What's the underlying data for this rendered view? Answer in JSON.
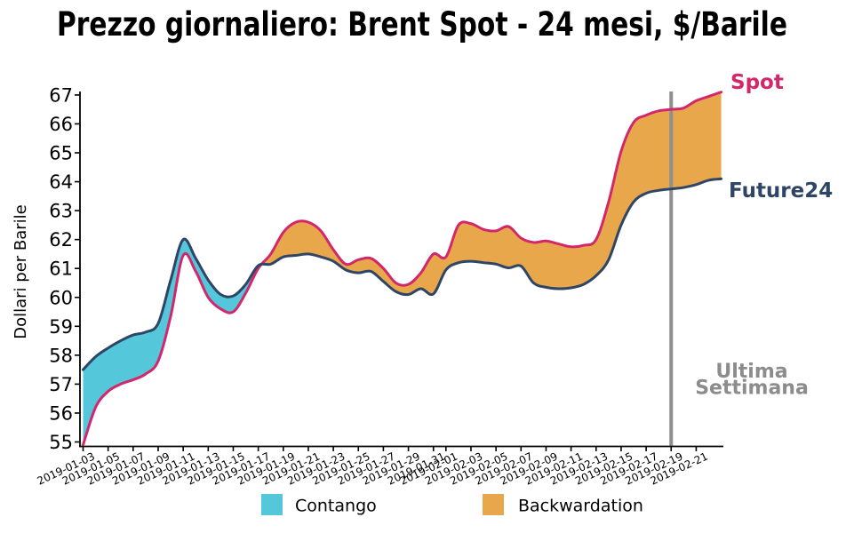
{
  "title": "Prezzo giornaliero: Brent Spot - 24 mesi, $/Barile",
  "ylabel": "Dollari per Barile",
  "annotations": {
    "spot": "Spot",
    "future": "Future24",
    "lastweek1": "Ultima",
    "lastweek2": "Settimana"
  },
  "legend": [
    {
      "label": "Contango",
      "color": "#54c7da"
    },
    {
      "label": "Backwardation",
      "color": "#e9a74c"
    }
  ],
  "colors": {
    "spot_line": "#d2276b",
    "future_line": "#2f4566",
    "contango_fill": "#54c7da",
    "backwardation_fill": "#e9a74c",
    "lastweek_line": "#8f8f8f",
    "lastweek_text": "#8c8c8c",
    "axis": "#000000"
  },
  "chart_data": {
    "type": "area",
    "title": "Prezzo giornaliero: Brent Spot - 24 mesi, $/Barile",
    "ylabel": "Dollari per Barile",
    "ylim": [
      54.85,
      67.15
    ],
    "yticks": [
      55,
      56,
      57,
      58,
      59,
      60,
      61,
      62,
      63,
      64,
      65,
      66,
      67
    ],
    "xtick_labels": [
      "2019-01-03",
      "2019-01-05",
      "2019-01-07",
      "2019-01-09",
      "2019-01-11",
      "2019-01-13",
      "2019-01-15",
      "2019-01-17",
      "2019-01-19",
      "2019-01-21",
      "2019-01-23",
      "2019-01-25",
      "2019-01-27",
      "2019-01-29",
      "2019-01-31",
      "2019-02-01",
      "2019-02-03",
      "2019-02-05",
      "2019-02-07",
      "2019-02-09",
      "2019-02-11",
      "2019-02-13",
      "2019-02-15",
      "2019-02-17",
      "2019-02-19",
      "2019-02-21"
    ],
    "dates": [
      "2019-01-03",
      "2019-01-04",
      "2019-01-05",
      "2019-01-06",
      "2019-01-07",
      "2019-01-08",
      "2019-01-09",
      "2019-01-10",
      "2019-01-11",
      "2019-01-12",
      "2019-01-13",
      "2019-01-14",
      "2019-01-15",
      "2019-01-16",
      "2019-01-17",
      "2019-01-18",
      "2019-01-19",
      "2019-01-20",
      "2019-01-21",
      "2019-01-22",
      "2019-01-23",
      "2019-01-24",
      "2019-01-25",
      "2019-01-26",
      "2019-01-27",
      "2019-01-28",
      "2019-01-29",
      "2019-01-30",
      "2019-01-31",
      "2019-02-01",
      "2019-02-02",
      "2019-02-03",
      "2019-02-04",
      "2019-02-05",
      "2019-02-06",
      "2019-02-07",
      "2019-02-08",
      "2019-02-09",
      "2019-02-10",
      "2019-02-11",
      "2019-02-12",
      "2019-02-13",
      "2019-02-14",
      "2019-02-15",
      "2019-02-16",
      "2019-02-17",
      "2019-02-18",
      "2019-02-19",
      "2019-02-20",
      "2019-02-21",
      "2019-02-22",
      "2019-02-23"
    ],
    "series": [
      {
        "name": "Spot",
        "values": [
          54.9,
          56.2,
          56.75,
          57.0,
          57.15,
          57.35,
          57.8,
          59.35,
          61.45,
          60.9,
          60.0,
          59.6,
          59.5,
          60.15,
          61.0,
          61.5,
          62.25,
          62.6,
          62.6,
          62.3,
          61.65,
          61.15,
          61.3,
          61.35,
          61.0,
          60.5,
          60.45,
          60.85,
          61.5,
          61.4,
          62.5,
          62.55,
          62.35,
          62.3,
          62.45,
          62.05,
          61.9,
          61.95,
          61.85,
          61.75,
          61.8,
          62.0,
          63.3,
          65.05,
          66.05,
          66.3,
          66.45,
          66.5,
          66.55,
          66.8,
          66.95,
          67.1
        ]
      },
      {
        "name": "Future24",
        "values": [
          57.5,
          57.95,
          58.25,
          58.5,
          58.7,
          58.8,
          59.1,
          60.6,
          62.0,
          61.35,
          60.6,
          60.1,
          60.05,
          60.45,
          61.1,
          61.15,
          61.4,
          61.45,
          61.5,
          61.4,
          61.25,
          60.95,
          60.85,
          60.9,
          60.55,
          60.2,
          60.1,
          60.3,
          60.12,
          60.95,
          61.2,
          61.25,
          61.2,
          61.15,
          61.02,
          61.08,
          60.5,
          60.35,
          60.3,
          60.33,
          60.45,
          60.75,
          61.3,
          62.5,
          63.3,
          63.6,
          63.7,
          63.75,
          63.8,
          63.9,
          64.05,
          64.1
        ]
      }
    ],
    "fill_rule": {
      "spot_above": "Backwardation",
      "spot_below": "Contango"
    },
    "vline_date": "2019-02-19"
  }
}
